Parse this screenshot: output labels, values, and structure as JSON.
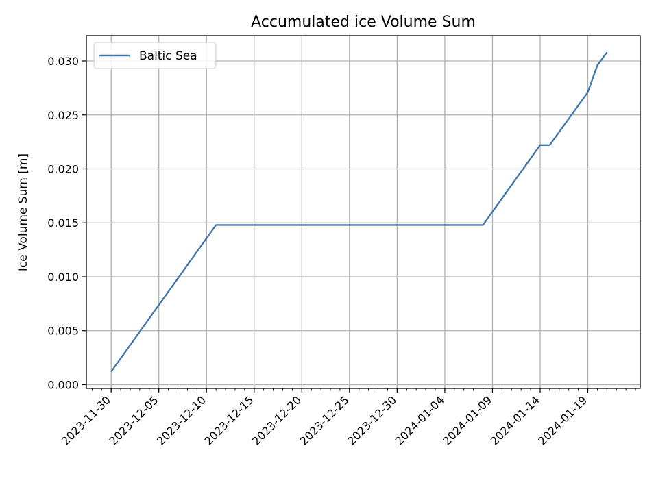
{
  "chart_data": {
    "type": "line",
    "title": "Accumulated ice Volume Sum",
    "xlabel": "",
    "ylabel": "Ice Volume Sum [m]",
    "x_type": "date",
    "xlim": [
      "2023-11-27.4",
      "2024-01-24.5"
    ],
    "ylim": [
      -0.00035,
      0.03235
    ],
    "xticks": [
      "2023-11-30",
      "2023-12-05",
      "2023-12-10",
      "2023-12-15",
      "2023-12-20",
      "2023-12-25",
      "2023-12-30",
      "2024-01-04",
      "2024-01-09",
      "2024-01-14",
      "2024-01-19"
    ],
    "yticks": [
      0.0,
      0.005,
      0.01,
      0.015,
      0.02,
      0.025,
      0.03
    ],
    "ytick_labels": [
      "0.000",
      "0.005",
      "0.010",
      "0.015",
      "0.020",
      "0.025",
      "0.030"
    ],
    "grid": true,
    "legend_position": "top-left",
    "series": [
      {
        "name": "Baltic Sea",
        "color": "#4477aa",
        "points": [
          {
            "x": "2023-11-30",
            "y": 0.0012
          },
          {
            "x": "2023-12-11",
            "y": 0.0148
          },
          {
            "x": "2024-01-08",
            "y": 0.0148
          },
          {
            "x": "2024-01-14",
            "y": 0.0222
          },
          {
            "x": "2024-01-15",
            "y": 0.0222
          },
          {
            "x": "2024-01-19",
            "y": 0.0271
          },
          {
            "x": "2024-01-20",
            "y": 0.0296
          },
          {
            "x": "2024-01-21",
            "y": 0.0308
          }
        ]
      }
    ]
  }
}
